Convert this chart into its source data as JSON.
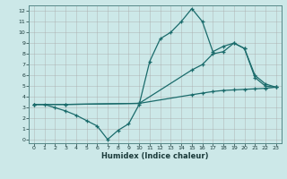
{
  "xlabel": "Humidex (Indice chaleur)",
  "bg_color": "#cce8e8",
  "grid_color": "#b0d0d0",
  "line_color": "#1a6b6b",
  "xlim": [
    -0.5,
    23.5
  ],
  "ylim": [
    -0.3,
    12.5
  ],
  "xticks": [
    0,
    1,
    2,
    3,
    4,
    5,
    6,
    7,
    8,
    9,
    10,
    11,
    12,
    13,
    14,
    15,
    16,
    17,
    18,
    19,
    20,
    21,
    22,
    23
  ],
  "yticks": [
    0,
    1,
    2,
    3,
    4,
    5,
    6,
    7,
    8,
    9,
    10,
    11,
    12
  ],
  "line1_x": [
    0,
    1,
    2,
    3,
    4,
    5,
    6,
    7,
    8,
    9,
    10,
    11,
    12,
    13,
    14,
    15,
    16,
    17,
    18,
    19,
    20,
    21,
    22,
    23
  ],
  "line1_y": [
    3.3,
    3.3,
    3.0,
    2.7,
    2.3,
    1.8,
    1.3,
    0.05,
    0.9,
    1.5,
    3.3,
    7.3,
    9.4,
    10.0,
    11.0,
    12.2,
    11.0,
    8.2,
    8.7,
    9.0,
    8.5,
    5.8,
    5.0,
    4.9
  ],
  "line2_x": [
    0,
    3,
    10,
    15,
    16,
    17,
    18,
    19,
    20,
    21,
    22,
    23
  ],
  "line2_y": [
    3.3,
    3.3,
    3.4,
    6.5,
    7.0,
    8.0,
    8.2,
    9.0,
    8.5,
    6.0,
    5.2,
    4.9
  ],
  "line3_x": [
    0,
    3,
    10,
    15,
    16,
    17,
    18,
    19,
    20,
    21,
    22,
    23
  ],
  "line3_y": [
    3.3,
    3.3,
    3.4,
    4.2,
    4.35,
    4.5,
    4.6,
    4.65,
    4.7,
    4.75,
    4.8,
    4.9
  ]
}
